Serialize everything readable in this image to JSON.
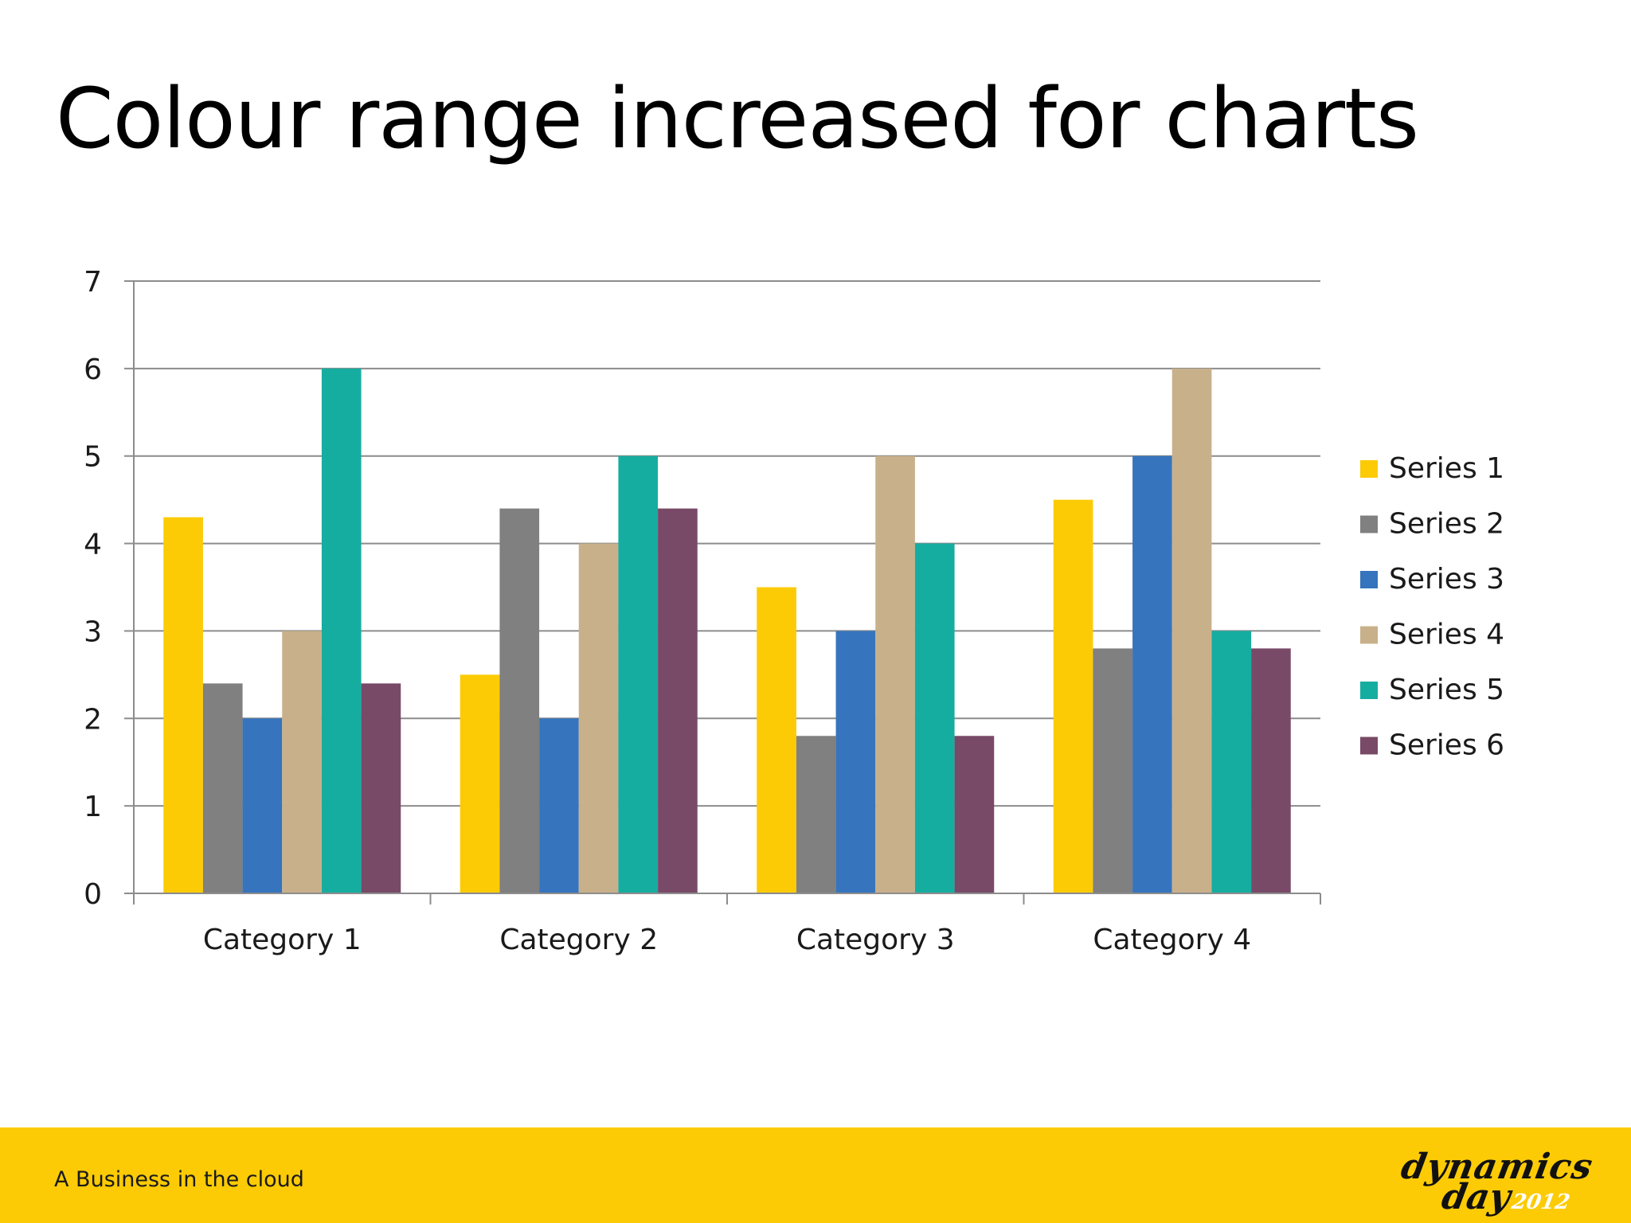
{
  "slide": {
    "title": "Colour range increased for charts",
    "footer_tagline": "A Business in the cloud",
    "logo_text_line1": "dynamics",
    "logo_text_line2": "day",
    "logo_year": "2012",
    "footer_color": "#fccb05"
  },
  "chart_data": {
    "type": "bar",
    "categories": [
      "Category 1",
      "Category 2",
      "Category 3",
      "Category 4"
    ],
    "series": [
      {
        "name": "Series 1",
        "color": "#fccb05",
        "values": [
          4.3,
          2.5,
          3.5,
          4.5
        ]
      },
      {
        "name": "Series 2",
        "color": "#808080",
        "values": [
          2.4,
          4.4,
          1.8,
          2.8
        ]
      },
      {
        "name": "Series 3",
        "color": "#3674bd",
        "values": [
          2,
          2,
          3,
          5
        ]
      },
      {
        "name": "Series 4",
        "color": "#c8b08a",
        "values": [
          3,
          4,
          5,
          6
        ]
      },
      {
        "name": "Series 5",
        "color": "#16ada1",
        "values": [
          6,
          5,
          4,
          3
        ]
      },
      {
        "name": "Series 6",
        "color": "#784a67",
        "values": [
          2.4,
          4.4,
          1.8,
          2.8
        ]
      }
    ],
    "ylim": [
      0,
      7
    ],
    "yticks": [
      0,
      1,
      2,
      3,
      4,
      5,
      6,
      7
    ],
    "grid": true,
    "legend_position": "right"
  }
}
